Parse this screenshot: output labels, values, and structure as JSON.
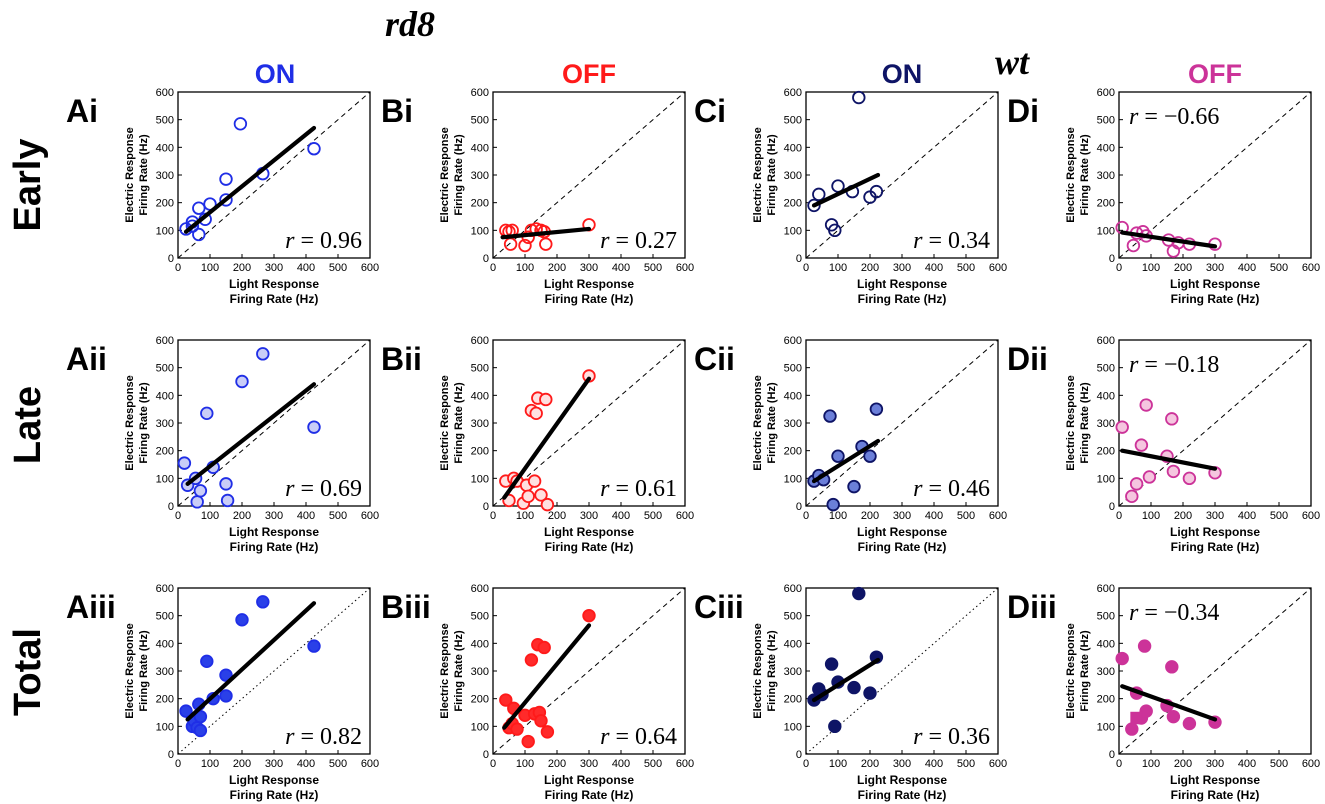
{
  "figure": {
    "group_labels": [
      "rd8",
      "wt"
    ],
    "column_headers": [
      {
        "label": "ON",
        "color": "#1f2ee6"
      },
      {
        "label": "OFF",
        "color": "#ff1a1a"
      },
      {
        "label": "ON",
        "color": "#0e1466"
      },
      {
        "label": "OFF",
        "color": "#cc3399"
      }
    ],
    "row_labels": [
      "Early",
      "Late",
      "Total"
    ],
    "x_axis_label": [
      "Light Response",
      "Firing Rate (Hz)"
    ],
    "y_axis_label": [
      "Electric Response",
      "Firing Rate (Hz)"
    ]
  },
  "chart_data": [
    {
      "panel": "Ai",
      "type": "scatter",
      "stroke": "#1f2ee6",
      "fill": "none",
      "r_text": "r = 0.96",
      "r_pos": "bottom-right",
      "xlim": [
        0,
        600
      ],
      "ylim": [
        0,
        600
      ],
      "xticks": [
        0,
        100,
        200,
        300,
        400,
        500,
        600
      ],
      "yticks": [
        0,
        100,
        200,
        300,
        400,
        500,
        600
      ],
      "identity_line": "dashed",
      "fit": [
        [
          25,
          95
        ],
        [
          425,
          470
        ]
      ],
      "points": [
        [
          25,
          105
        ],
        [
          45,
          115
        ],
        [
          45,
          130
        ],
        [
          65,
          85
        ],
        [
          65,
          180
        ],
        [
          85,
          140
        ],
        [
          100,
          195
        ],
        [
          150,
          210
        ],
        [
          150,
          285
        ],
        [
          195,
          485
        ],
        [
          265,
          305
        ],
        [
          425,
          395
        ]
      ]
    },
    {
      "panel": "Bi",
      "type": "scatter",
      "stroke": "#ff1a1a",
      "fill": "none",
      "r_text": "r = 0.27",
      "r_pos": "bottom-right",
      "xlim": [
        0,
        600
      ],
      "ylim": [
        0,
        600
      ],
      "xticks": [
        0,
        100,
        200,
        300,
        400,
        500,
        600
      ],
      "yticks": [
        0,
        100,
        200,
        300,
        400,
        500,
        600
      ],
      "identity_line": "dashed",
      "fit": [
        [
          30,
          75
        ],
        [
          300,
          105
        ]
      ],
      "points": [
        [
          40,
          100
        ],
        [
          50,
          95
        ],
        [
          55,
          50
        ],
        [
          60,
          100
        ],
        [
          100,
          45
        ],
        [
          110,
          75
        ],
        [
          120,
          100
        ],
        [
          135,
          105
        ],
        [
          150,
          100
        ],
        [
          160,
          95
        ],
        [
          165,
          50
        ],
        [
          300,
          120
        ]
      ]
    },
    {
      "panel": "Ci",
      "type": "scatter",
      "stroke": "#0e1466",
      "fill": "none",
      "r_text": "r = 0.34",
      "r_pos": "bottom-right",
      "xlim": [
        0,
        600
      ],
      "ylim": [
        0,
        600
      ],
      "xticks": [
        0,
        100,
        200,
        300,
        400,
        500,
        600
      ],
      "yticks": [
        0,
        100,
        200,
        300,
        400,
        500,
        600
      ],
      "identity_line": "dashed",
      "fit": [
        [
          25,
          190
        ],
        [
          225,
          300
        ]
      ],
      "points": [
        [
          25,
          190
        ],
        [
          40,
          230
        ],
        [
          80,
          120
        ],
        [
          90,
          100
        ],
        [
          100,
          260
        ],
        [
          145,
          240
        ],
        [
          165,
          580
        ],
        [
          200,
          220
        ],
        [
          220,
          240
        ]
      ]
    },
    {
      "panel": "Di",
      "type": "scatter",
      "stroke": "#cc3399",
      "fill": "none",
      "r_text": "r = −0.66",
      "r_pos": "top-left",
      "xlim": [
        0,
        600
      ],
      "ylim": [
        0,
        600
      ],
      "xticks": [
        0,
        100,
        200,
        300,
        400,
        500,
        600
      ],
      "yticks": [
        0,
        100,
        200,
        300,
        400,
        500,
        600
      ],
      "identity_line": "dashed",
      "fit": [
        [
          10,
          92
        ],
        [
          300,
          42
        ]
      ],
      "points": [
        [
          10,
          110
        ],
        [
          45,
          45
        ],
        [
          55,
          90
        ],
        [
          75,
          95
        ],
        [
          85,
          80
        ],
        [
          155,
          65
        ],
        [
          170,
          25
        ],
        [
          185,
          55
        ],
        [
          220,
          50
        ],
        [
          300,
          50
        ]
      ]
    },
    {
      "panel": "Aii",
      "type": "scatter",
      "stroke": "#1f2ee6",
      "fill": "#c9cdf7",
      "r_text": "r = 0.69",
      "r_pos": "bottom-right",
      "xlim": [
        0,
        600
      ],
      "ylim": [
        0,
        600
      ],
      "xticks": [
        0,
        100,
        200,
        300,
        400,
        500,
        600
      ],
      "yticks": [
        0,
        100,
        200,
        300,
        400,
        500,
        600
      ],
      "identity_line": "dashed",
      "fit": [
        [
          30,
          80
        ],
        [
          425,
          440
        ]
      ],
      "points": [
        [
          20,
          155
        ],
        [
          30,
          75
        ],
        [
          55,
          100
        ],
        [
          60,
          15
        ],
        [
          70,
          55
        ],
        [
          90,
          335
        ],
        [
          110,
          140
        ],
        [
          150,
          80
        ],
        [
          155,
          20
        ],
        [
          200,
          450
        ],
        [
          265,
          550
        ],
        [
          425,
          285
        ]
      ]
    },
    {
      "panel": "Bii",
      "type": "scatter",
      "stroke": "#ff1a1a",
      "fill": "#ffe0e0",
      "r_text": "r = 0.61",
      "r_pos": "bottom-right",
      "xlim": [
        0,
        600
      ],
      "ylim": [
        0,
        600
      ],
      "xticks": [
        0,
        100,
        200,
        300,
        400,
        500,
        600
      ],
      "yticks": [
        0,
        100,
        200,
        300,
        400,
        500,
        600
      ],
      "identity_line": "dashed",
      "fit": [
        [
          35,
          30
        ],
        [
          300,
          460
        ]
      ],
      "points": [
        [
          40,
          90
        ],
        [
          50,
          20
        ],
        [
          65,
          100
        ],
        [
          75,
          90
        ],
        [
          95,
          10
        ],
        [
          105,
          75
        ],
        [
          110,
          35
        ],
        [
          120,
          345
        ],
        [
          130,
          90
        ],
        [
          135,
          335
        ],
        [
          140,
          390
        ],
        [
          150,
          40
        ],
        [
          165,
          385
        ],
        [
          170,
          5
        ],
        [
          300,
          470
        ]
      ]
    },
    {
      "panel": "Cii",
      "type": "scatter",
      "stroke": "#0e1466",
      "fill": "#6b7fd9",
      "r_text": "r = 0.46",
      "r_pos": "bottom-right",
      "xlim": [
        0,
        600
      ],
      "ylim": [
        0,
        600
      ],
      "xticks": [
        0,
        100,
        200,
        300,
        400,
        500,
        600
      ],
      "yticks": [
        0,
        100,
        200,
        300,
        400,
        500,
        600
      ],
      "identity_line": "dashed",
      "fit": [
        [
          25,
          90
        ],
        [
          225,
          235
        ]
      ],
      "points": [
        [
          25,
          90
        ],
        [
          40,
          110
        ],
        [
          55,
          95
        ],
        [
          75,
          325
        ],
        [
          85,
          5
        ],
        [
          100,
          180
        ],
        [
          150,
          70
        ],
        [
          175,
          215
        ],
        [
          200,
          180
        ],
        [
          220,
          350
        ]
      ]
    },
    {
      "panel": "Dii",
      "type": "scatter",
      "stroke": "#cc3399",
      "fill": "#f5c6df",
      "r_text": "r = −0.18",
      "r_pos": "top-left",
      "xlim": [
        0,
        600
      ],
      "ylim": [
        0,
        600
      ],
      "xticks": [
        0,
        100,
        200,
        300,
        400,
        500,
        600
      ],
      "yticks": [
        0,
        100,
        200,
        300,
        400,
        500,
        600
      ],
      "identity_line": "dashed",
      "fit": [
        [
          10,
          200
        ],
        [
          300,
          135
        ]
      ],
      "points": [
        [
          10,
          285
        ],
        [
          40,
          35
        ],
        [
          55,
          80
        ],
        [
          70,
          220
        ],
        [
          85,
          365
        ],
        [
          95,
          105
        ],
        [
          150,
          180
        ],
        [
          165,
          315
        ],
        [
          170,
          125
        ],
        [
          220,
          100
        ],
        [
          300,
          120
        ]
      ]
    },
    {
      "panel": "Aiii",
      "type": "scatter",
      "stroke": "#1f2ee6",
      "fill": "#2a40e8",
      "r_text": "r = 0.82",
      "r_pos": "bottom-right",
      "xlim": [
        0,
        600
      ],
      "ylim": [
        0,
        600
      ],
      "xticks": [
        0,
        100,
        200,
        300,
        400,
        500,
        600
      ],
      "yticks": [
        0,
        100,
        200,
        300,
        400,
        500,
        600
      ],
      "identity_line": "dotted",
      "fit": [
        [
          30,
          125
        ],
        [
          425,
          545
        ]
      ],
      "points": [
        [
          25,
          155
        ],
        [
          45,
          100
        ],
        [
          50,
          120
        ],
        [
          60,
          95
        ],
        [
          65,
          180
        ],
        [
          70,
          135
        ],
        [
          70,
          85
        ],
        [
          90,
          335
        ],
        [
          110,
          200
        ],
        [
          150,
          285
        ],
        [
          150,
          210
        ],
        [
          200,
          485
        ],
        [
          265,
          550
        ],
        [
          425,
          390
        ]
      ]
    },
    {
      "panel": "Biii",
      "type": "scatter",
      "stroke": "#ff1a1a",
      "fill": "#ff2a2a",
      "r_text": "r = 0.64",
      "r_pos": "bottom-right",
      "xlim": [
        0,
        600
      ],
      "ylim": [
        0,
        600
      ],
      "xticks": [
        0,
        100,
        200,
        300,
        400,
        500,
        600
      ],
      "yticks": [
        0,
        100,
        200,
        300,
        400,
        500,
        600
      ],
      "identity_line": "dashed",
      "fit": [
        [
          35,
          95
        ],
        [
          300,
          465
        ]
      ],
      "points": [
        [
          40,
          195
        ],
        [
          50,
          95
        ],
        [
          60,
          110
        ],
        [
          65,
          165
        ],
        [
          75,
          90
        ],
        [
          100,
          140
        ],
        [
          110,
          45
        ],
        [
          120,
          340
        ],
        [
          130,
          145
        ],
        [
          140,
          395
        ],
        [
          145,
          150
        ],
        [
          150,
          120
        ],
        [
          160,
          385
        ],
        [
          170,
          80
        ],
        [
          300,
          500
        ]
      ]
    },
    {
      "panel": "Ciii",
      "type": "scatter",
      "stroke": "#0e1466",
      "fill": "#0e1466",
      "r_text": "r = 0.36",
      "r_pos": "bottom-right",
      "xlim": [
        0,
        600
      ],
      "ylim": [
        0,
        600
      ],
      "xticks": [
        0,
        100,
        200,
        300,
        400,
        500,
        600
      ],
      "yticks": [
        0,
        100,
        200,
        300,
        400,
        500,
        600
      ],
      "identity_line": "dotted",
      "fit": [
        [
          25,
          195
        ],
        [
          225,
          340
        ]
      ],
      "points": [
        [
          25,
          195
        ],
        [
          40,
          235
        ],
        [
          50,
          215
        ],
        [
          80,
          325
        ],
        [
          90,
          100
        ],
        [
          100,
          260
        ],
        [
          150,
          240
        ],
        [
          165,
          580
        ],
        [
          200,
          220
        ],
        [
          220,
          350
        ]
      ]
    },
    {
      "panel": "Diii",
      "type": "scatter",
      "stroke": "#cc3399",
      "fill": "#cc3399",
      "r_text": "r = −0.34",
      "r_pos": "top-left",
      "xlim": [
        0,
        600
      ],
      "ylim": [
        0,
        600
      ],
      "xticks": [
        0,
        100,
        200,
        300,
        400,
        500,
        600
      ],
      "yticks": [
        0,
        100,
        200,
        300,
        400,
        500,
        600
      ],
      "identity_line": "dashed",
      "fit": [
        [
          10,
          245
        ],
        [
          300,
          125
        ]
      ],
      "points": [
        [
          10,
          345
        ],
        [
          40,
          90
        ],
        [
          55,
          220
        ],
        [
          70,
          130
        ],
        [
          80,
          390
        ],
        [
          85,
          155
        ],
        [
          150,
          175
        ],
        [
          165,
          315
        ],
        [
          170,
          135
        ],
        [
          220,
          110
        ],
        [
          300,
          115
        ]
      ],
      "square_points": [
        [
          55,
          130
        ]
      ]
    }
  ]
}
